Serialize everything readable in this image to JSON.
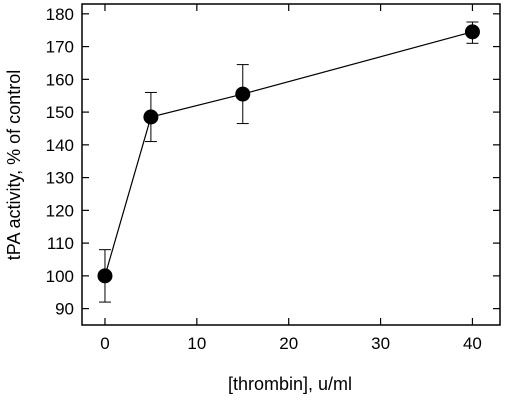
{
  "chart_data": {
    "type": "scatter",
    "title": "",
    "xlabel": "[thrombin], u/ml",
    "ylabel": "tPA activity, % of control",
    "xlim": [
      -2.5,
      43
    ],
    "ylim": [
      85,
      183
    ],
    "xticks": [
      0,
      10,
      20,
      30,
      40
    ],
    "yticks": [
      90,
      100,
      110,
      120,
      130,
      140,
      150,
      160,
      170,
      180
    ],
    "grid": false,
    "legend": "none",
    "connected": true,
    "series": [
      {
        "x": [
          0,
          5,
          15,
          40
        ],
        "y": [
          100,
          148.5,
          155.5,
          174.5
        ],
        "error_low": [
          92,
          141,
          146.5,
          171
        ],
        "error_high": [
          108,
          156,
          164.5,
          177.5
        ]
      }
    ],
    "colors": {
      "marker": "#000000",
      "line": "#000000",
      "axes": "#000000"
    }
  }
}
